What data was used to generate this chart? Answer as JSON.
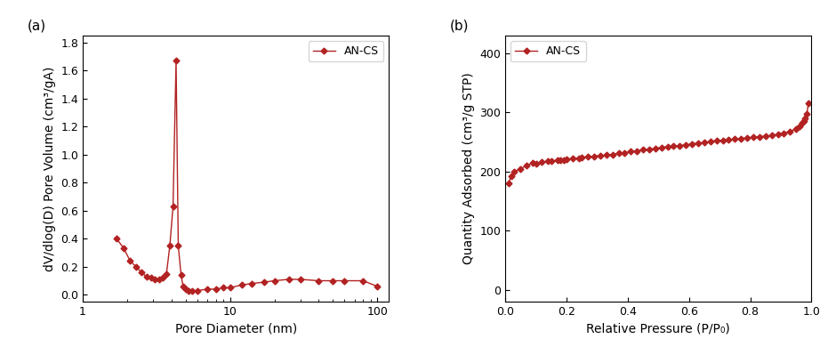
{
  "panel_a_label": "(a)",
  "panel_b_label": "(b)",
  "line_color": "#B22222",
  "marker": "D",
  "marker_size": 3.5,
  "line_width": 1.0,
  "legend_label": "AN-CS",
  "panel_a": {
    "xlabel": "Pore Diameter (nm)",
    "ylabel": "dV/dlog(D) Pore Volume (cm³/gA)",
    "xlim": [
      1,
      120
    ],
    "ylim": [
      -0.05,
      1.85
    ],
    "yticks": [
      0.0,
      0.2,
      0.4,
      0.6,
      0.8,
      1.0,
      1.2,
      1.4,
      1.6,
      1.8
    ],
    "xticks_major": [
      1,
      10,
      100
    ],
    "x": [
      1.7,
      1.9,
      2.1,
      2.3,
      2.5,
      2.7,
      2.9,
      3.1,
      3.3,
      3.5,
      3.7,
      3.9,
      4.1,
      4.3,
      4.45,
      4.65,
      4.8,
      5.0,
      5.2,
      5.5,
      6.0,
      7.0,
      8.0,
      9.0,
      10.0,
      12.0,
      14.0,
      17.0,
      20.0,
      25.0,
      30.0,
      40.0,
      50.0,
      60.0,
      80.0,
      100.0
    ],
    "y": [
      0.4,
      0.33,
      0.24,
      0.2,
      0.16,
      0.13,
      0.12,
      0.11,
      0.11,
      0.12,
      0.15,
      0.35,
      0.63,
      1.67,
      0.35,
      0.14,
      0.06,
      0.04,
      0.03,
      0.03,
      0.03,
      0.04,
      0.04,
      0.05,
      0.05,
      0.07,
      0.08,
      0.09,
      0.1,
      0.11,
      0.11,
      0.1,
      0.1,
      0.1,
      0.1,
      0.06
    ]
  },
  "panel_b": {
    "xlabel": "Relative Pressure (P/P₀)",
    "ylabel": "Quantity Adsorbed (cm³/g STP)",
    "xlim": [
      0.0,
      1.0
    ],
    "ylim": [
      -20,
      430
    ],
    "yticks": [
      0,
      100,
      200,
      300,
      400
    ],
    "xticks": [
      0.0,
      0.2,
      0.4,
      0.6,
      0.8,
      1.0
    ],
    "x": [
      0.01,
      0.02,
      0.03,
      0.05,
      0.07,
      0.09,
      0.1,
      0.12,
      0.14,
      0.15,
      0.17,
      0.18,
      0.19,
      0.2,
      0.22,
      0.24,
      0.25,
      0.27,
      0.29,
      0.31,
      0.33,
      0.35,
      0.37,
      0.39,
      0.41,
      0.43,
      0.45,
      0.47,
      0.49,
      0.51,
      0.53,
      0.55,
      0.57,
      0.59,
      0.61,
      0.63,
      0.65,
      0.67,
      0.69,
      0.71,
      0.73,
      0.75,
      0.77,
      0.79,
      0.81,
      0.83,
      0.85,
      0.87,
      0.89,
      0.91,
      0.93,
      0.95,
      0.96,
      0.97,
      0.975,
      0.98,
      0.985,
      0.99
    ],
    "y": [
      180,
      193,
      200,
      205,
      210,
      215,
      214,
      216,
      218,
      218,
      219,
      220,
      220,
      221,
      222,
      223,
      224,
      225,
      226,
      227,
      228,
      229,
      231,
      232,
      234,
      235,
      237,
      238,
      239,
      241,
      242,
      243,
      244,
      245,
      247,
      248,
      249,
      251,
      252,
      253,
      254,
      255,
      256,
      257,
      258,
      259,
      260,
      261,
      263,
      265,
      268,
      272,
      276,
      282,
      285,
      290,
      298,
      315
    ]
  },
  "background_color": "#ffffff",
  "font_size_label": 10,
  "font_size_tick": 9,
  "font_size_panel": 11,
  "font_size_legend": 9
}
